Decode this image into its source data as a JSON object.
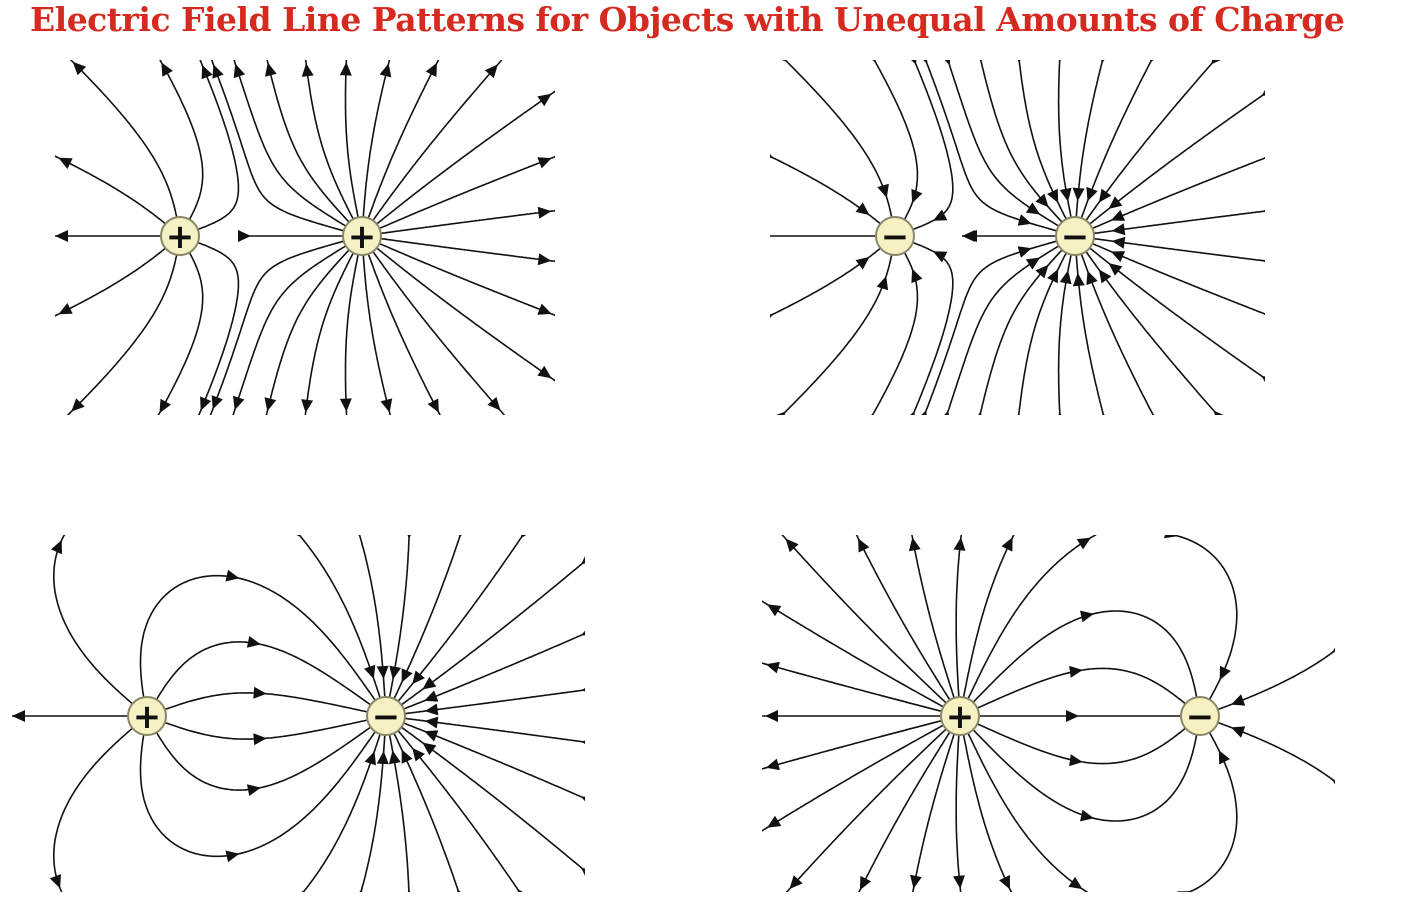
{
  "title": "Electric Field Line Patterns for Objects with Unequal Amounts of Charge",
  "colors": {
    "title": "#d42a1f",
    "field_line": "#111111",
    "charge_fill": "#f6f1c2",
    "charge_stroke": "#8a8668"
  },
  "panels": [
    {
      "name": "small-positive-large-positive",
      "charges": [
        {
          "role": "small",
          "sign": "positive",
          "symbol": "+"
        },
        {
          "role": "large",
          "sign": "positive",
          "symbol": "+"
        }
      ]
    },
    {
      "name": "small-negative-large-negative",
      "charges": [
        {
          "role": "small",
          "sign": "negative",
          "symbol": "−"
        },
        {
          "role": "large",
          "sign": "negative",
          "symbol": "−"
        }
      ]
    },
    {
      "name": "small-positive-large-negative",
      "charges": [
        {
          "role": "small",
          "sign": "positive",
          "symbol": "+"
        },
        {
          "role": "large",
          "sign": "negative",
          "symbol": "−"
        }
      ]
    },
    {
      "name": "large-positive-small-negative",
      "charges": [
        {
          "role": "large",
          "sign": "positive",
          "symbol": "+"
        },
        {
          "role": "small",
          "sign": "negative",
          "symbol": "−"
        }
      ]
    }
  ]
}
